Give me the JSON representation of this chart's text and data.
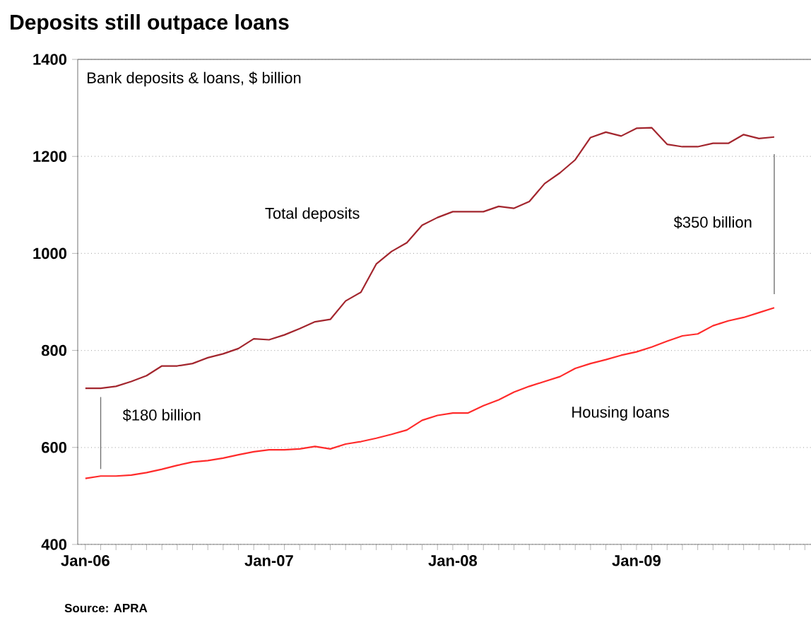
{
  "chart_data": {
    "type": "line",
    "title": "Deposits still outpace loans",
    "subtitle": "Bank deposits & loans, $ billion",
    "annotations": [
      "Source: APRA",
      "$180 billion",
      "$350 billion"
    ],
    "x": [
      "2006-01",
      "2006-02",
      "2006-03",
      "2006-04",
      "2006-05",
      "2006-06",
      "2006-07",
      "2006-08",
      "2006-09",
      "2006-10",
      "2006-11",
      "2006-12",
      "2007-01",
      "2007-02",
      "2007-03",
      "2007-04",
      "2007-05",
      "2007-06",
      "2007-07",
      "2007-08",
      "2007-09",
      "2007-10",
      "2007-11",
      "2007-12",
      "2008-01",
      "2008-02",
      "2008-03",
      "2008-04",
      "2008-05",
      "2008-06",
      "2008-07",
      "2008-08",
      "2008-09",
      "2008-10",
      "2008-11",
      "2008-12",
      "2009-01",
      "2009-02",
      "2009-03",
      "2009-04",
      "2009-05",
      "2009-06",
      "2009-07",
      "2009-08",
      "2009-09",
      "2009-10"
    ],
    "series": [
      {
        "name": "Total deposits",
        "color": "#a3262e",
        "values": [
          722,
          722,
          726,
          736,
          748,
          768,
          768,
          773,
          785,
          793,
          804,
          824,
          822,
          832,
          845,
          859,
          864,
          902,
          920,
          978,
          1004,
          1022,
          1058,
          1074,
          1086,
          1086,
          1086,
          1097,
          1093,
          1107,
          1144,
          1166,
          1193,
          1239,
          1250,
          1242,
          1258,
          1259,
          1225,
          1220,
          1220,
          1227,
          1227,
          1245,
          1237,
          1240
        ]
      },
      {
        "name": "Housing loans",
        "color": "#ff2b2b",
        "values": [
          536,
          541,
          541,
          543,
          548,
          555,
          563,
          570,
          573,
          578,
          585,
          591,
          595,
          595,
          597,
          602,
          597,
          607,
          612,
          619,
          627,
          636,
          656,
          666,
          671,
          671,
          686,
          698,
          714,
          726,
          736,
          746,
          763,
          773,
          781,
          790,
          797,
          807,
          819,
          830,
          834,
          851,
          861,
          868,
          878,
          888
        ]
      }
    ],
    "xlim": [
      "2005-12-16",
      "2009-12-13"
    ],
    "ylim": [
      400,
      1400
    ],
    "xticks": [
      {
        "value": "2006-01",
        "label": "Jan-06"
      },
      {
        "value": "2006-02",
        "label": null
      },
      {
        "value": "2006-03",
        "label": null
      },
      {
        "value": "2006-04",
        "label": null
      },
      {
        "value": "2006-05",
        "label": null
      },
      {
        "value": "2006-06",
        "label": null
      },
      {
        "value": "2006-07",
        "label": null
      },
      {
        "value": "2006-08",
        "label": null
      },
      {
        "value": "2006-09",
        "label": null
      },
      {
        "value": "2006-10",
        "label": null
      },
      {
        "value": "2006-11",
        "label": null
      },
      {
        "value": "2006-12",
        "label": null
      },
      {
        "value": "2007-01",
        "label": "Jan-07"
      },
      {
        "value": "2007-02",
        "label": null
      },
      {
        "value": "2007-03",
        "label": null
      },
      {
        "value": "2007-04",
        "label": null
      },
      {
        "value": "2007-05",
        "label": null
      },
      {
        "value": "2007-06",
        "label": null
      },
      {
        "value": "2007-07",
        "label": null
      },
      {
        "value": "2007-08",
        "label": null
      },
      {
        "value": "2007-09",
        "label": null
      },
      {
        "value": "2007-10",
        "label": null
      },
      {
        "value": "2007-11",
        "label": null
      },
      {
        "value": "2007-12",
        "label": null
      },
      {
        "value": "2008-01",
        "label": "Jan-08"
      },
      {
        "value": "2008-02",
        "label": null
      },
      {
        "value": "2008-03",
        "label": null
      },
      {
        "value": "2008-04",
        "label": null
      },
      {
        "value": "2008-05",
        "label": null
      },
      {
        "value": "2008-06",
        "label": null
      },
      {
        "value": "2008-07",
        "label": null
      },
      {
        "value": "2008-08",
        "label": null
      },
      {
        "value": "2008-09",
        "label": null
      },
      {
        "value": "2008-10",
        "label": null
      },
      {
        "value": "2008-11",
        "label": null
      },
      {
        "value": "2008-12",
        "label": null
      },
      {
        "value": "2009-01",
        "label": "Jan-09"
      },
      {
        "value": "2009-02",
        "label": null
      },
      {
        "value": "2009-03",
        "label": null
      },
      {
        "value": "2009-04",
        "label": null
      },
      {
        "value": "2009-05",
        "label": null
      },
      {
        "value": "2009-06",
        "label": null
      },
      {
        "value": "2009-07",
        "label": null
      },
      {
        "value": "2009-08",
        "label": null
      },
      {
        "value": "2009-09",
        "label": null
      },
      {
        "value": "2009-10",
        "label": null
      },
      {
        "value": "2009-11",
        "label": null
      },
      {
        "value": "2009-12",
        "label": null
      }
    ],
    "yticks": [
      400,
      600,
      800,
      1000,
      1200,
      1400
    ],
    "grid": "y",
    "marker": "none",
    "line_style": "solid"
  }
}
